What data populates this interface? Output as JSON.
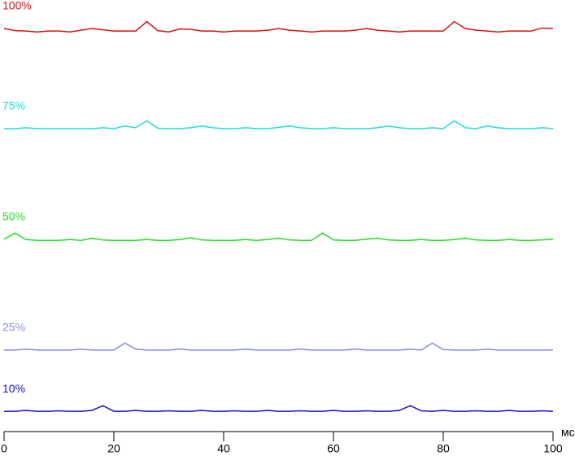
{
  "chart_data": {
    "type": "line",
    "x_label": "мс",
    "x": [
      0,
      2,
      4,
      6,
      8,
      10,
      12,
      14,
      16,
      18,
      20,
      22,
      24,
      26,
      28,
      30,
      32,
      34,
      36,
      38,
      40,
      42,
      44,
      46,
      48,
      50,
      52,
      54,
      56,
      58,
      60,
      62,
      64,
      66,
      68,
      70,
      72,
      74,
      76,
      78,
      80,
      82,
      84,
      86,
      88,
      90,
      92,
      94,
      96,
      98,
      100
    ],
    "xlim": [
      0,
      100
    ],
    "xticks": [
      0,
      20,
      40,
      60,
      80,
      100
    ],
    "ylim": [
      0,
      100
    ],
    "series": [
      {
        "name": "100%",
        "color": "#dd1111",
        "values": [
          93.4,
          92.9,
          92.8,
          92.6,
          92.8,
          92.8,
          92.6,
          93.0,
          93.4,
          93.1,
          92.8,
          92.8,
          92.8,
          95.0,
          92.9,
          92.6,
          93.3,
          93.2,
          92.8,
          92.8,
          92.6,
          92.8,
          92.8,
          92.8,
          93.0,
          93.4,
          93.0,
          92.8,
          92.6,
          92.8,
          92.8,
          92.8,
          93.0,
          93.4,
          93.0,
          92.8,
          92.6,
          92.8,
          92.8,
          92.8,
          92.8,
          95.0,
          93.4,
          93.0,
          92.8,
          92.6,
          92.8,
          92.8,
          92.8,
          93.5,
          93.4
        ]
      },
      {
        "name": "75%",
        "color": "#22dddd",
        "values": [
          70.2,
          70.2,
          70.4,
          70.2,
          70.2,
          70.2,
          70.2,
          70.2,
          70.2,
          70.4,
          70.2,
          70.8,
          70.4,
          72.0,
          70.3,
          70.2,
          70.2,
          70.4,
          70.8,
          70.4,
          70.2,
          70.2,
          70.4,
          70.2,
          70.2,
          70.5,
          70.8,
          70.4,
          70.2,
          70.2,
          70.4,
          70.2,
          70.2,
          70.2,
          70.4,
          70.8,
          70.4,
          70.2,
          70.2,
          70.4,
          70.2,
          72.0,
          70.4,
          70.2,
          70.8,
          70.4,
          70.2,
          70.2,
          70.2,
          70.4,
          70.2
        ]
      },
      {
        "name": "50%",
        "color": "#22dd22",
        "values": [
          44.6,
          46.0,
          44.5,
          44.3,
          44.3,
          44.3,
          44.5,
          44.3,
          44.8,
          44.4,
          44.3,
          44.3,
          44.3,
          44.5,
          44.3,
          44.3,
          44.5,
          44.9,
          44.4,
          44.3,
          44.3,
          44.3,
          44.5,
          44.3,
          44.5,
          44.8,
          44.4,
          44.3,
          44.3,
          46.0,
          44.4,
          44.3,
          44.3,
          44.6,
          44.8,
          44.4,
          44.3,
          44.3,
          44.5,
          44.3,
          44.3,
          44.5,
          44.8,
          44.4,
          44.3,
          44.3,
          44.5,
          44.3,
          44.3,
          44.4,
          44.6
        ]
      },
      {
        "name": "25%",
        "color": "#8888ee",
        "values": [
          18.9,
          18.9,
          19.1,
          18.9,
          18.9,
          18.9,
          18.9,
          19.1,
          18.9,
          18.9,
          18.9,
          20.5,
          19.1,
          18.9,
          18.9,
          18.9,
          19.1,
          18.9,
          18.9,
          18.9,
          18.9,
          18.9,
          19.1,
          18.9,
          18.9,
          18.9,
          18.9,
          19.1,
          18.9,
          18.9,
          18.9,
          18.9,
          19.1,
          18.9,
          18.9,
          18.9,
          18.9,
          19.1,
          18.9,
          20.5,
          19.0,
          18.9,
          18.9,
          18.9,
          19.1,
          18.9,
          18.9,
          18.9,
          18.9,
          18.9,
          18.9
        ]
      },
      {
        "name": "10%",
        "color": "#1111cc",
        "values": [
          4.7,
          4.7,
          4.9,
          4.7,
          4.7,
          4.8,
          4.7,
          4.7,
          4.9,
          6.0,
          4.7,
          4.7,
          4.9,
          4.7,
          4.7,
          4.8,
          4.7,
          4.7,
          4.9,
          4.7,
          4.7,
          4.8,
          4.7,
          4.7,
          4.9,
          4.7,
          4.7,
          4.8,
          4.7,
          4.7,
          4.9,
          4.7,
          4.7,
          4.8,
          4.7,
          4.7,
          4.9,
          6.0,
          4.8,
          4.7,
          4.9,
          4.7,
          4.7,
          4.8,
          4.7,
          4.7,
          4.9,
          4.7,
          4.7,
          4.8,
          4.7
        ]
      }
    ]
  }
}
